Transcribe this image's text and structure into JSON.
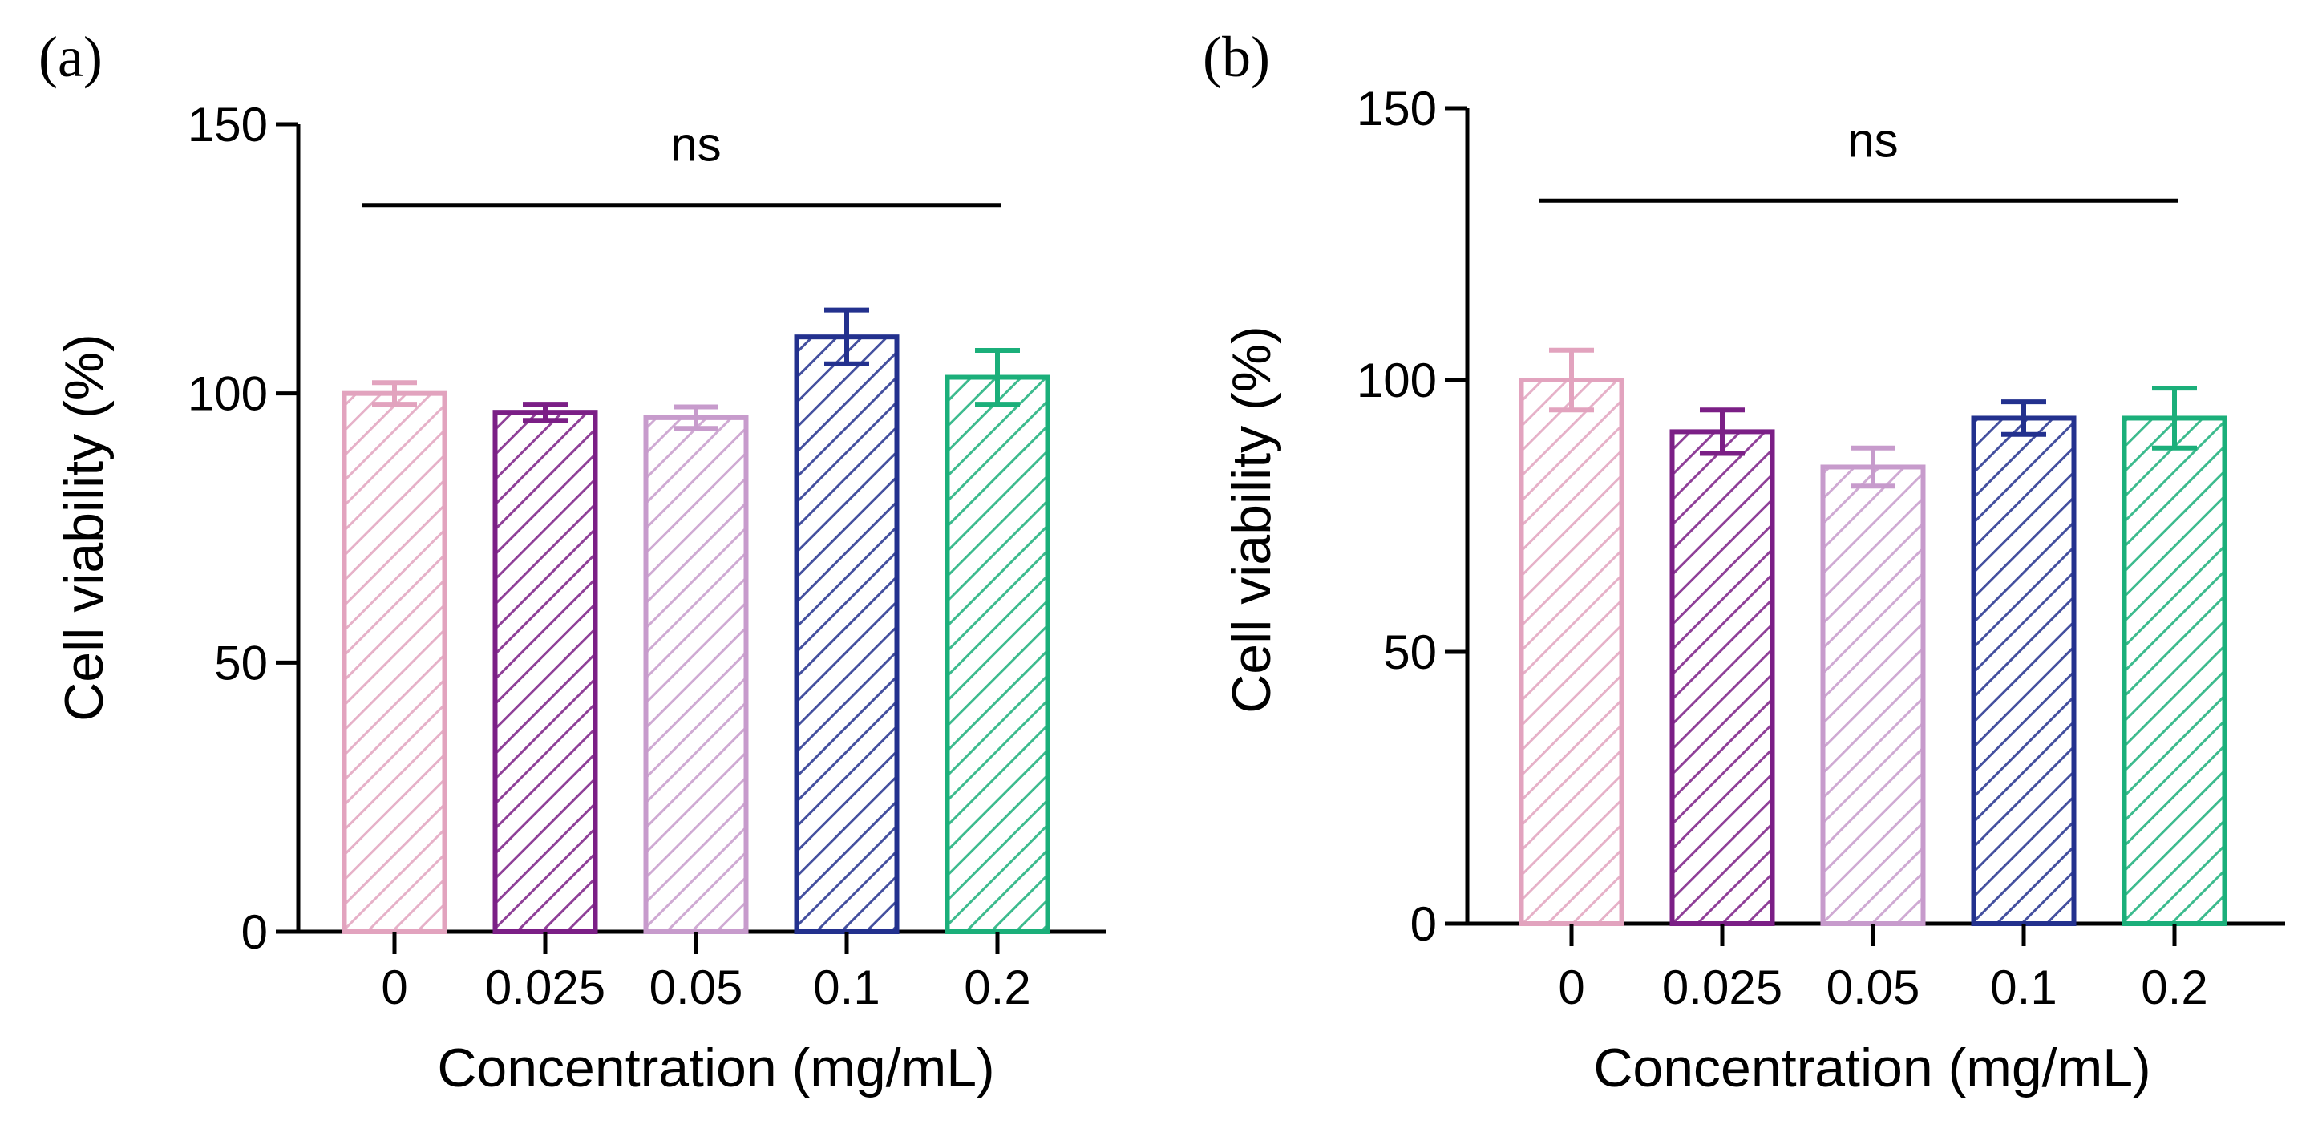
{
  "chart_data": [
    {
      "type": "bar",
      "panel_label": "(a)",
      "categories": [
        "0",
        "0.025",
        "0.05",
        "0.1",
        "0.2"
      ],
      "values": [
        100,
        96.5,
        95.5,
        110.5,
        103
      ],
      "errors": [
        2,
        1.5,
        2,
        5,
        5
      ],
      "colors": [
        "#E2A3BE",
        "#7B1F86",
        "#C79BCC",
        "#23318E",
        "#1BAF7A"
      ],
      "xlabel": "Concentration (mg/mL)",
      "ylabel": "Cell viability (%)",
      "ylim": [
        0,
        150
      ],
      "yticks": [
        0,
        50,
        100,
        150
      ],
      "significance": {
        "label": "ns",
        "from_category": "0",
        "to_category": "0.2",
        "y": 135
      }
    },
    {
      "type": "bar",
      "panel_label": "(b)",
      "categories": [
        "0",
        "0.025",
        "0.05",
        "0.1",
        "0.2"
      ],
      "values": [
        100,
        90.5,
        84,
        93,
        93
      ],
      "errors": [
        5.5,
        4,
        3.5,
        3,
        5.5
      ],
      "colors": [
        "#E2A3BE",
        "#7B1F86",
        "#C79BCC",
        "#23318E",
        "#1BAF7A"
      ],
      "xlabel": "Concentration (mg/mL)",
      "ylabel": "Cell viability (%)",
      "ylim": [
        0,
        150
      ],
      "yticks": [
        0,
        50,
        100,
        150
      ],
      "significance": {
        "label": "ns",
        "from_category": "0",
        "to_category": "0.2",
        "y": 133
      }
    }
  ]
}
